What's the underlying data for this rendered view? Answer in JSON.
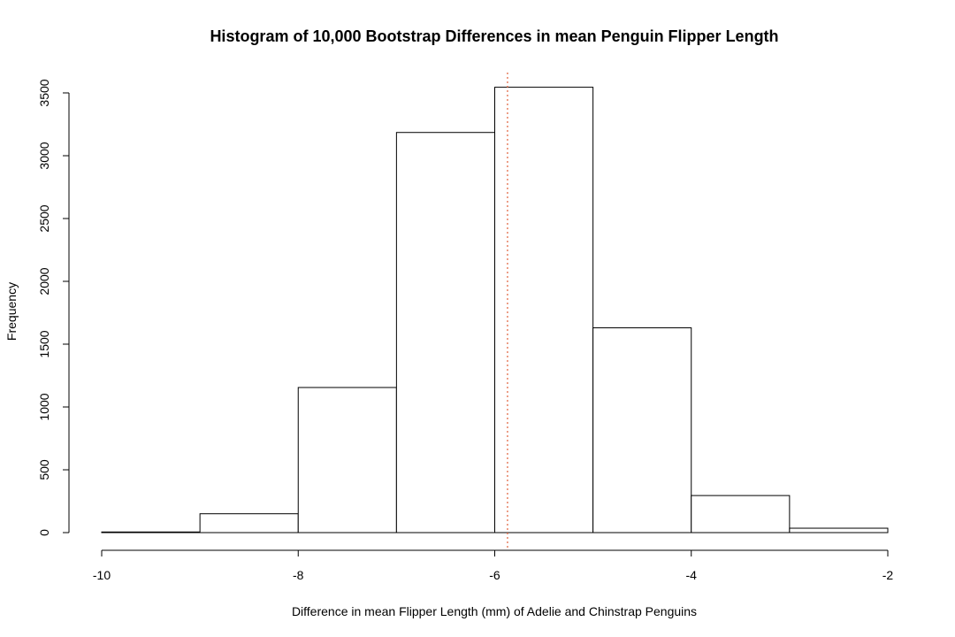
{
  "chart_data": {
    "type": "bar",
    "title": "Histogram of 10,000 Bootstrap Differences in mean Penguin Flipper Length",
    "xlabel": "Difference in mean Flipper Length (mm) of Adelie and Chinstrap Penguins",
    "ylabel": "Frequency",
    "bins": [
      {
        "x0": -10,
        "x1": -9,
        "value": 5
      },
      {
        "x0": -9,
        "x1": -8,
        "value": 150
      },
      {
        "x0": -8,
        "x1": -7,
        "value": 1155
      },
      {
        "x0": -7,
        "x1": -6,
        "value": 3185
      },
      {
        "x0": -6,
        "x1": -5,
        "value": 3545
      },
      {
        "x0": -5,
        "x1": -4,
        "value": 1630
      },
      {
        "x0": -4,
        "x1": -3,
        "value": 295
      },
      {
        "x0": -3,
        "x1": -2,
        "value": 35
      }
    ],
    "xlim": [
      -10,
      -2
    ],
    "ylim": [
      0,
      3500
    ],
    "x_ticks": [
      "-10",
      "-8",
      "-6",
      "-4",
      "-2"
    ],
    "y_ticks": [
      "0",
      "500",
      "1000",
      "1500",
      "2000",
      "2500",
      "3000",
      "3500"
    ],
    "reference_line": {
      "x": -5.87,
      "color": "#e0603a",
      "style": "dotted"
    },
    "grid": false,
    "legend": "none"
  }
}
